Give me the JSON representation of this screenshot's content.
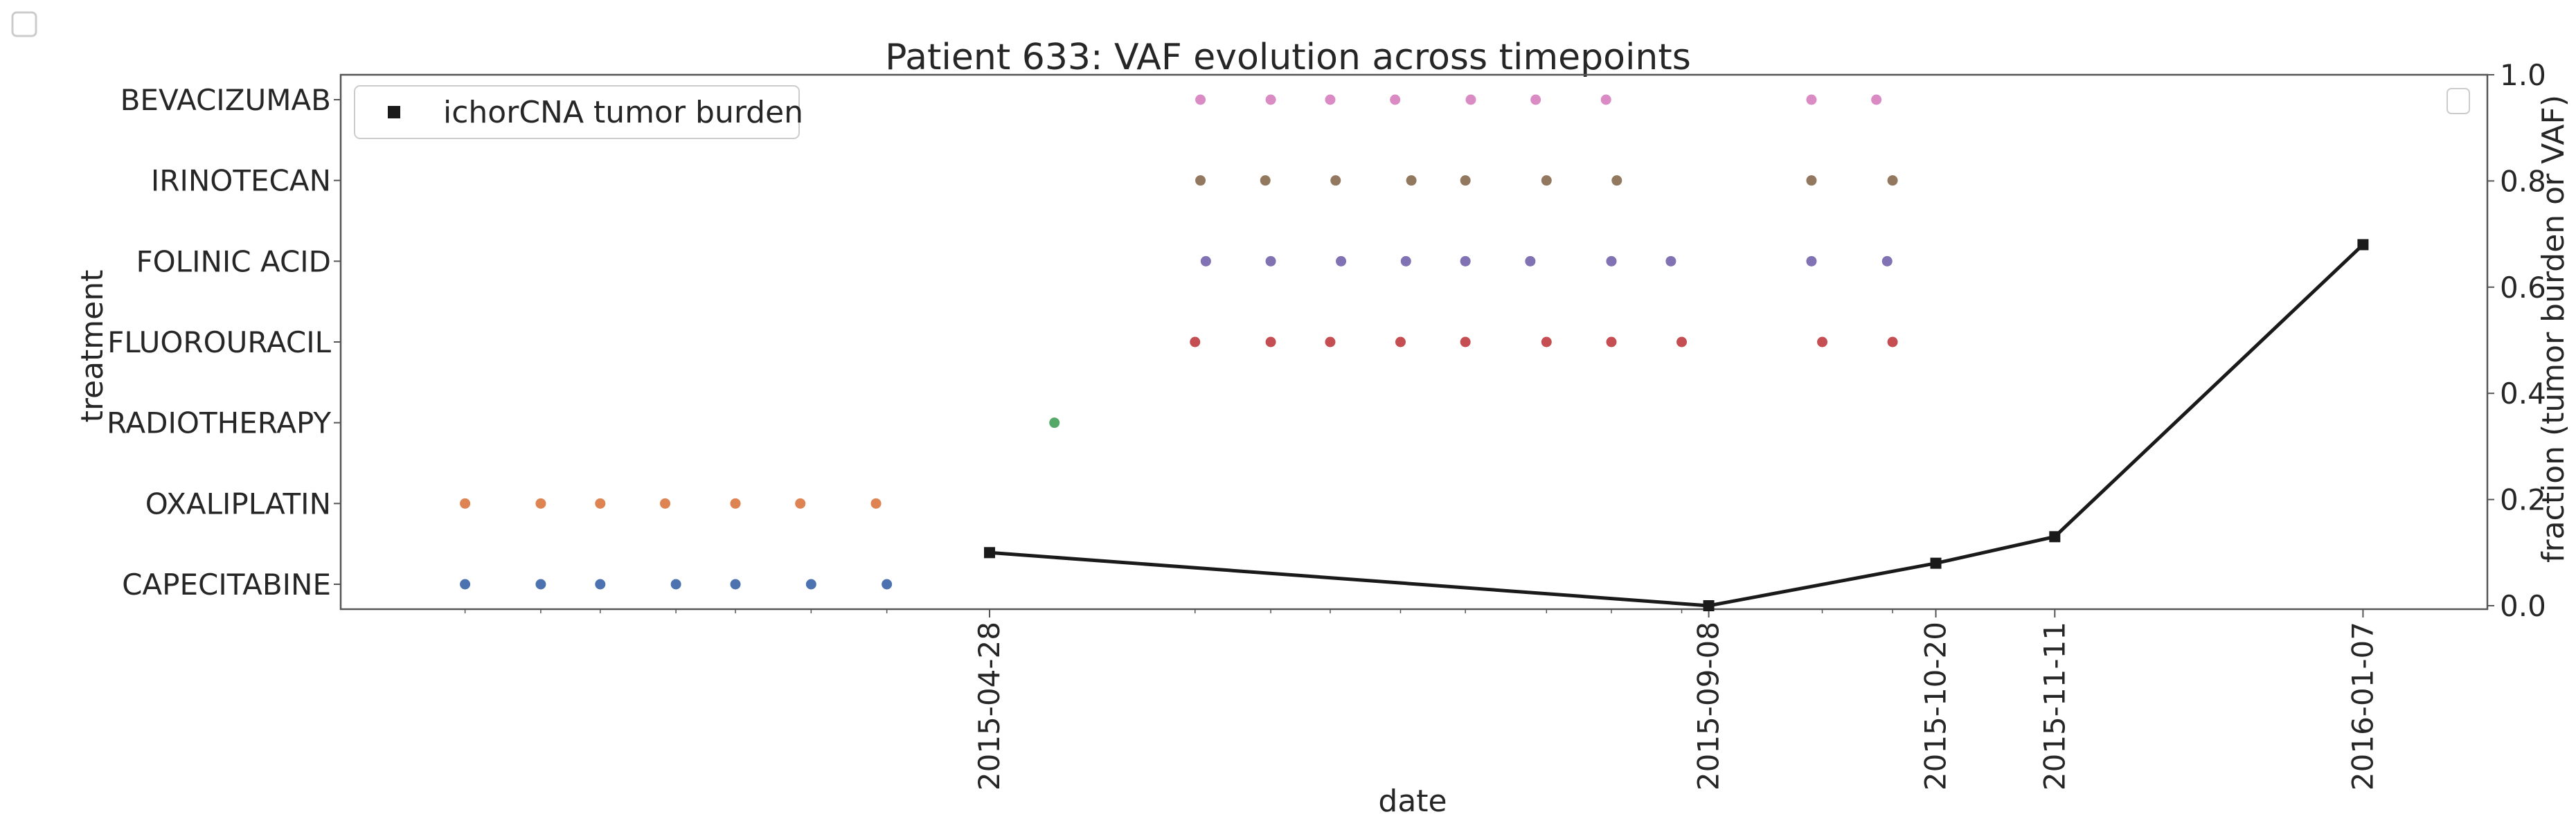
{
  "chart_data": {
    "type": "scatter",
    "title": "Patient 633: VAF evolution across timepoints",
    "xlabel": "date",
    "ylabel": "treatment",
    "y2label": "fraction (tumor burden or VAF)",
    "xlim": [
      "2014-12-29",
      "2016-01-30"
    ],
    "y2lim": [
      0,
      1
    ],
    "y2ticks": [
      "0.0",
      "0.2",
      "0.4",
      "0.6",
      "0.8",
      "1.0"
    ],
    "xticks": [
      "2015-04-28",
      "2015-09-08",
      "2015-10-20",
      "2015-11-11",
      "2016-01-07"
    ],
    "grid": false,
    "legend_position": "top-left",
    "treatments": [
      {
        "name": "CAPECITABINE",
        "color": "#4c72b0",
        "dates": [
          "2015-01-21",
          "2015-02-04",
          "2015-02-15",
          "2015-03-01",
          "2015-03-12",
          "2015-03-26",
          "2015-04-09"
        ]
      },
      {
        "name": "OXALIPLATIN",
        "color": "#dd8452",
        "dates": [
          "2015-01-21",
          "2015-02-04",
          "2015-02-15",
          "2015-02-27",
          "2015-03-12",
          "2015-03-24",
          "2015-04-07"
        ]
      },
      {
        "name": "RADIOTHERAPY",
        "color": "#55a868",
        "dates": [
          "2015-05-10"
        ]
      },
      {
        "name": "FLUOROURACIL",
        "color": "#c44e52",
        "dates": [
          "2015-06-05",
          "2015-06-19",
          "2015-06-30",
          "2015-07-13",
          "2015-07-25",
          "2015-08-09",
          "2015-08-21",
          "2015-09-03",
          "2015-09-29",
          "2015-10-12"
        ]
      },
      {
        "name": "FOLINIC ACID",
        "color": "#8172b3",
        "dates": [
          "2015-06-07",
          "2015-06-19",
          "2015-07-02",
          "2015-07-14",
          "2015-07-25",
          "2015-08-06",
          "2015-08-21",
          "2015-09-01",
          "2015-09-27",
          "2015-10-11"
        ]
      },
      {
        "name": "IRINOTECAN",
        "color": "#937860",
        "dates": [
          "2015-06-06",
          "2015-06-18",
          "2015-07-01",
          "2015-07-15",
          "2015-07-25",
          "2015-08-09",
          "2015-08-22",
          "2015-09-27",
          "2015-10-12"
        ]
      },
      {
        "name": "BEVACIZUMAB",
        "color": "#da8bc3",
        "dates": [
          "2015-06-06",
          "2015-06-19",
          "2015-06-30",
          "2015-07-12",
          "2015-07-26",
          "2015-08-07",
          "2015-08-20",
          "2015-09-27",
          "2015-10-09"
        ]
      }
    ],
    "series": [
      {
        "name": "ichorCNA tumor burden",
        "color": "#1a1a1a",
        "marker": "square",
        "x": [
          "2015-04-28",
          "2015-09-08",
          "2015-10-20",
          "2015-11-11",
          "2016-01-07"
        ],
        "y": [
          0.1,
          0.0,
          0.08,
          0.13,
          0.68
        ]
      }
    ]
  }
}
